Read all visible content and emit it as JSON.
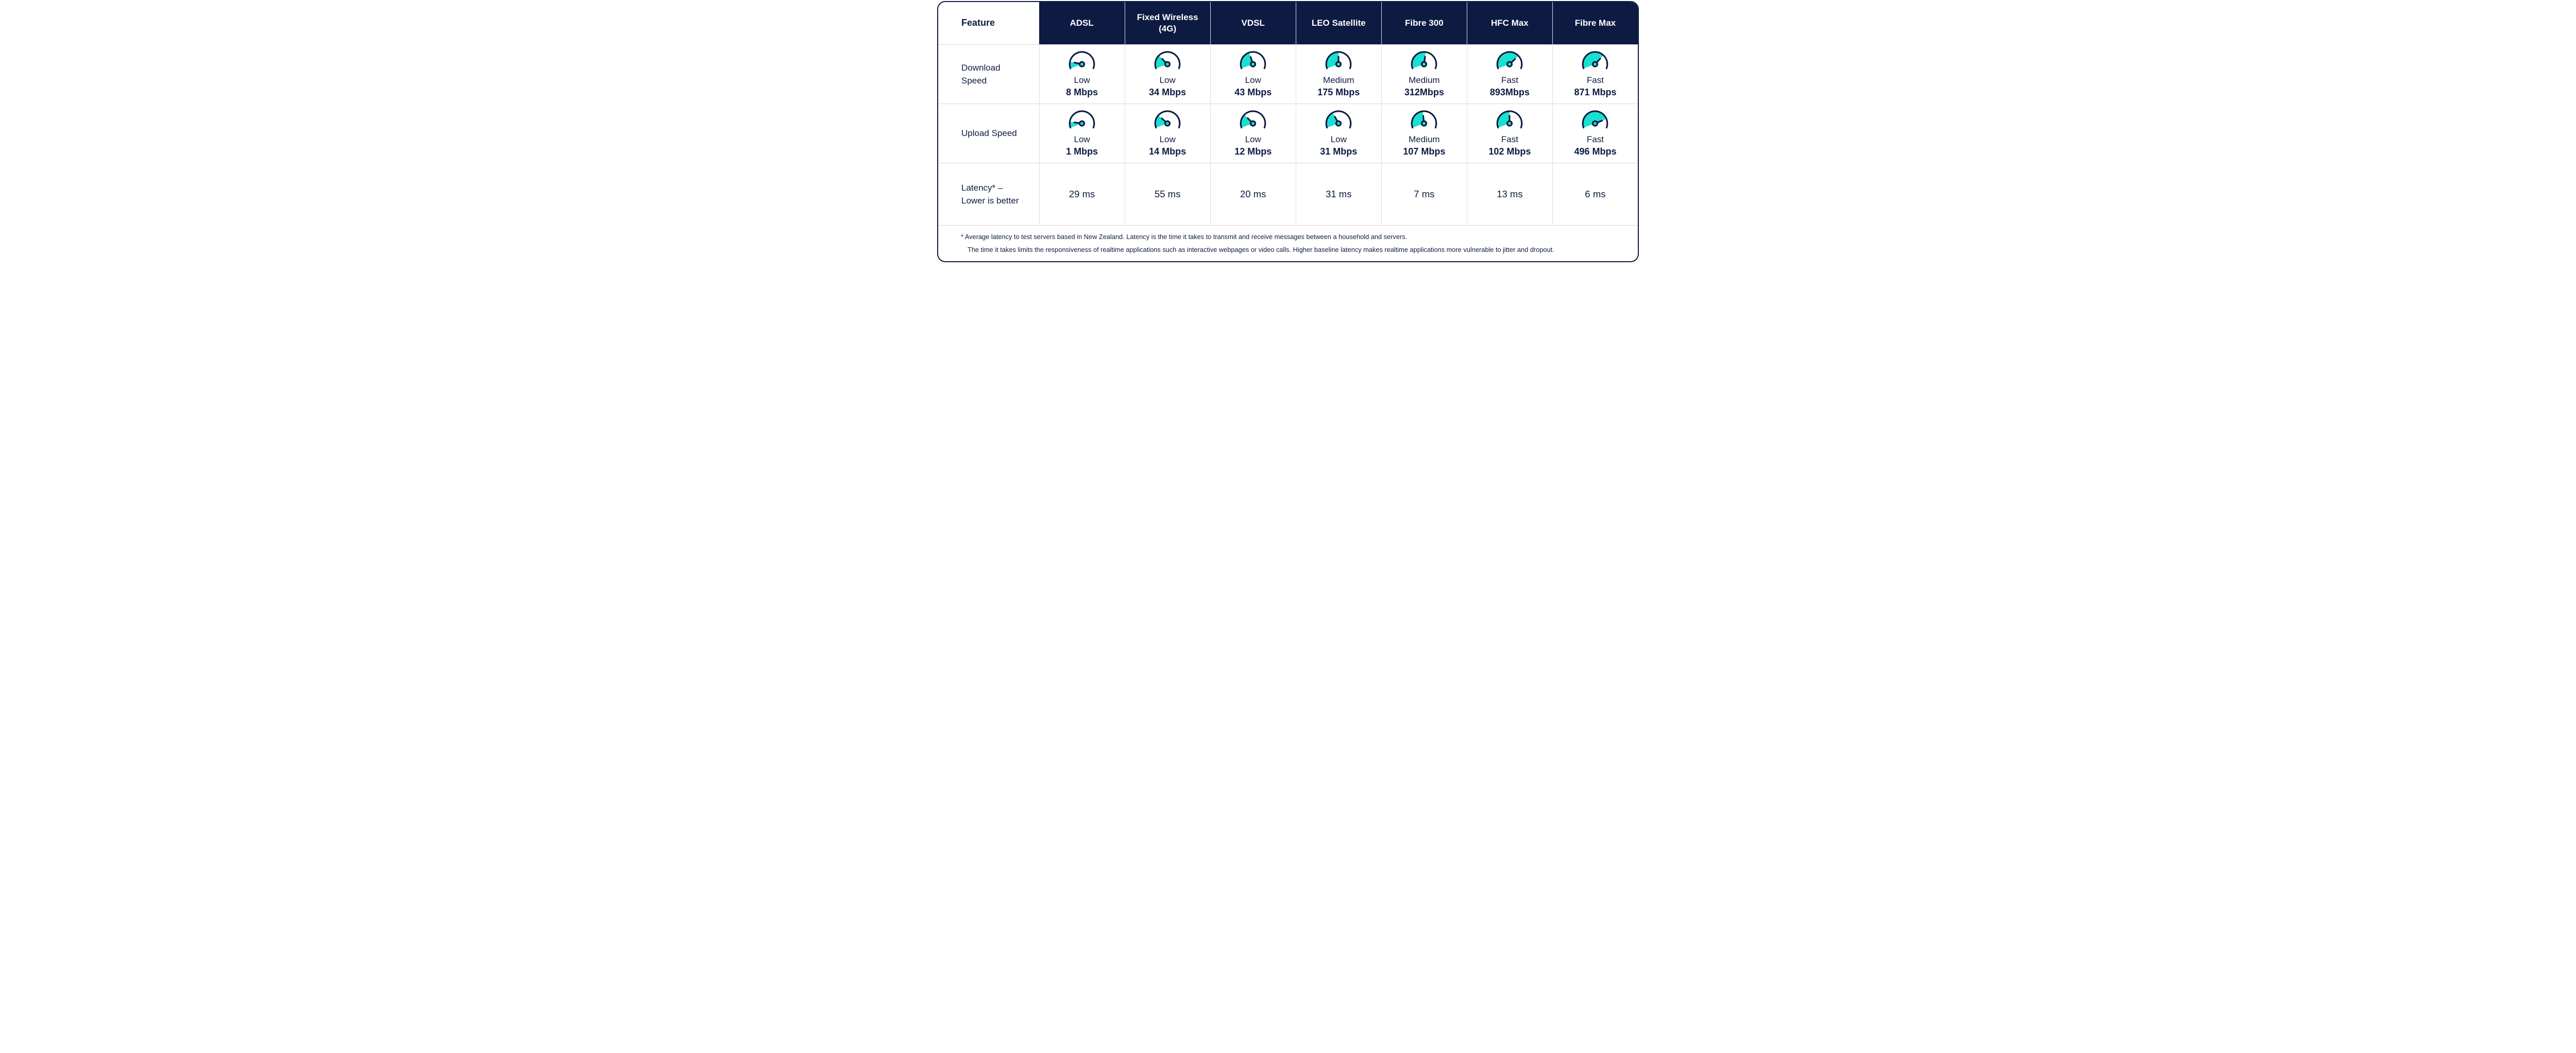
{
  "chart_data": {
    "type": "table",
    "title": "Broadband technology comparison",
    "feature_header": "Feature",
    "columns": [
      "ADSL",
      "Fixed Wireless (4G)",
      "VDSL",
      "LEO Satellite",
      "Fibre 300",
      "HFC Max",
      "Fibre Max"
    ],
    "rows": [
      {
        "label": "Download Speed",
        "label_lines": [
          "Download",
          "Speed"
        ],
        "type": "gauge",
        "cells": [
          {
            "level": "Low",
            "value": "8 Mbps",
            "angle": -78
          },
          {
            "level": "Low",
            "value": "34 Mbps",
            "angle": -45
          },
          {
            "level": "Low",
            "value": "43 Mbps",
            "angle": -18
          },
          {
            "level": "Medium",
            "value": "175 Mbps",
            "angle": 0
          },
          {
            "level": "Medium",
            "value": "312Mbps",
            "angle": 8
          },
          {
            "level": "Fast",
            "value": "893Mbps",
            "angle": 47
          },
          {
            "level": "Fast",
            "value": "871 Mbps",
            "angle": 43
          }
        ]
      },
      {
        "label": "Upload Speed",
        "label_lines": [
          "Upload Speed"
        ],
        "type": "gauge",
        "cells": [
          {
            "level": "Low",
            "value": "1 Mbps",
            "angle": -82
          },
          {
            "level": "Low",
            "value": "14 Mbps",
            "angle": -48
          },
          {
            "level": "Low",
            "value": "12 Mbps",
            "angle": -45
          },
          {
            "level": "Low",
            "value": "31 Mbps",
            "angle": -28
          },
          {
            "level": "Medium",
            "value": "107 Mbps",
            "angle": -6
          },
          {
            "level": "Fast",
            "value": "102 Mbps",
            "angle": 0
          },
          {
            "level": "Fast",
            "value": "496 Mbps",
            "angle": 68
          }
        ]
      },
      {
        "label": "Latency* – Lower is better",
        "label_lines": [
          "Latency* –",
          "Lower is better"
        ],
        "type": "text",
        "cells": [
          {
            "value": "29 ms"
          },
          {
            "value": "55 ms"
          },
          {
            "value": "20 ms"
          },
          {
            "value": "31 ms"
          },
          {
            "value": "7 ms"
          },
          {
            "value": "13 ms"
          },
          {
            "value": "6 ms"
          }
        ]
      }
    ],
    "footnote_lines": [
      "* Average latency to test servers based in New Zealand.  Latency is the time it takes to transmit and receive messages between a household and servers.",
      "The time it takes limits the responsiveness of realtime applications such as interactive webpages or video calls.  Higher baseline latency makes realtime applications more vulnerable to jitter and dropout."
    ],
    "colors": {
      "navy": "#0d1b42",
      "teal": "#19e0cf",
      "separator": "#d8d8d8",
      "header_text": "#ffffff"
    }
  }
}
